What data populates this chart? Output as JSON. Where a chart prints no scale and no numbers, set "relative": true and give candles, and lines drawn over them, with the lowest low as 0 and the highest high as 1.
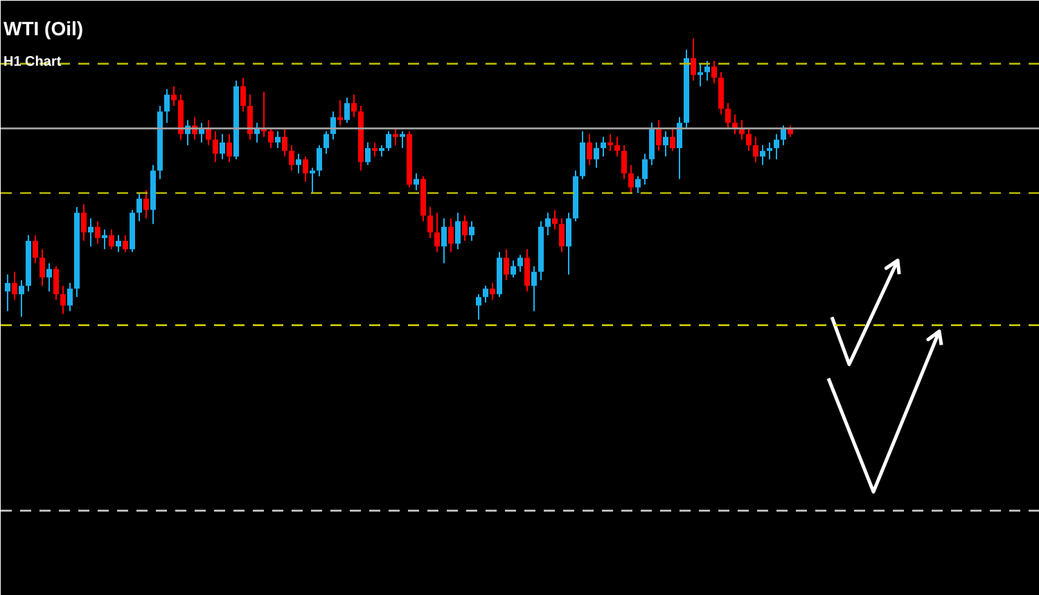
{
  "chart_data": {
    "type": "candlestick",
    "title": "WTI (Oil)",
    "subtitle": "H1 Chart",
    "relative": true,
    "grid": false,
    "categories": [
      null,
      null,
      null,
      null,
      null,
      null,
      null,
      null,
      null,
      null,
      null,
      null,
      null,
      null,
      null,
      null,
      null,
      null,
      null,
      null,
      null,
      null,
      null,
      null,
      null,
      null,
      null,
      null,
      null,
      null,
      null,
      null,
      null,
      null,
      null,
      null,
      null,
      null,
      null,
      null,
      null,
      null,
      null,
      null,
      null,
      null,
      null,
      null,
      null,
      null,
      null,
      null,
      null,
      null,
      null,
      null,
      null,
      null,
      null,
      null,
      null,
      null,
      null,
      null,
      null,
      null,
      null,
      null,
      null,
      null,
      null,
      null,
      null,
      null,
      null,
      null,
      null,
      null,
      null,
      null,
      null,
      null,
      null,
      null,
      null,
      null,
      null,
      null,
      null,
      null,
      null,
      null,
      null,
      null,
      null,
      null,
      null,
      null,
      null,
      null,
      null,
      null,
      null,
      null,
      null,
      null,
      null,
      null,
      null,
      null,
      null,
      null,
      null,
      null
    ],
    "ohlc": [
      [
        0.1,
        0.16,
        0.03,
        0.13
      ],
      [
        0.13,
        0.17,
        0.07,
        0.09
      ],
      [
        0.09,
        0.14,
        0.01,
        0.12
      ],
      [
        0.12,
        0.3,
        0.1,
        0.28
      ],
      [
        0.28,
        0.3,
        0.2,
        0.22
      ],
      [
        0.22,
        0.25,
        0.12,
        0.15
      ],
      [
        0.15,
        0.2,
        0.1,
        0.18
      ],
      [
        0.18,
        0.19,
        0.07,
        0.09
      ],
      [
        0.09,
        0.12,
        0.02,
        0.05
      ],
      [
        0.05,
        0.13,
        0.03,
        0.11
      ],
      [
        0.11,
        0.4,
        0.08,
        0.38
      ],
      [
        0.38,
        0.41,
        0.28,
        0.31
      ],
      [
        0.31,
        0.36,
        0.26,
        0.33
      ],
      [
        0.33,
        0.35,
        0.27,
        0.29
      ],
      [
        0.29,
        0.32,
        0.25,
        0.3
      ],
      [
        0.3,
        0.32,
        0.25,
        0.26
      ],
      [
        0.26,
        0.3,
        0.24,
        0.28
      ],
      [
        0.28,
        0.3,
        0.24,
        0.25
      ],
      [
        0.25,
        0.39,
        0.24,
        0.38
      ],
      [
        0.38,
        0.45,
        0.35,
        0.43
      ],
      [
        0.43,
        0.46,
        0.36,
        0.39
      ],
      [
        0.39,
        0.55,
        0.34,
        0.53
      ],
      [
        0.53,
        0.76,
        0.5,
        0.74
      ],
      [
        0.74,
        0.82,
        0.7,
        0.8
      ],
      [
        0.8,
        0.83,
        0.76,
        0.78
      ],
      [
        0.78,
        0.8,
        0.64,
        0.66
      ],
      [
        0.66,
        0.71,
        0.62,
        0.69
      ],
      [
        0.69,
        0.72,
        0.64,
        0.66
      ],
      [
        0.66,
        0.7,
        0.63,
        0.68
      ],
      [
        0.68,
        0.71,
        0.62,
        0.64
      ],
      [
        0.64,
        0.67,
        0.56,
        0.59
      ],
      [
        0.59,
        0.66,
        0.57,
        0.63
      ],
      [
        0.63,
        0.66,
        0.56,
        0.58
      ],
      [
        0.58,
        0.85,
        0.57,
        0.83
      ],
      [
        0.83,
        0.86,
        0.74,
        0.76
      ],
      [
        0.76,
        0.8,
        0.64,
        0.66
      ],
      [
        0.66,
        0.7,
        0.63,
        0.68
      ],
      [
        0.68,
        0.81,
        0.65,
        0.67
      ],
      [
        0.67,
        0.68,
        0.61,
        0.63
      ],
      [
        0.63,
        0.67,
        0.61,
        0.65
      ],
      [
        0.65,
        0.68,
        0.58,
        0.6
      ],
      [
        0.6,
        0.62,
        0.53,
        0.55
      ],
      [
        0.55,
        0.59,
        0.52,
        0.57
      ],
      [
        0.57,
        0.58,
        0.49,
        0.52
      ],
      [
        0.52,
        0.54,
        0.45,
        0.53
      ],
      [
        0.53,
        0.62,
        0.51,
        0.61
      ],
      [
        0.61,
        0.67,
        0.59,
        0.66
      ],
      [
        0.66,
        0.74,
        0.64,
        0.72
      ],
      [
        0.72,
        0.78,
        0.69,
        0.71
      ],
      [
        0.71,
        0.79,
        0.7,
        0.77
      ],
      [
        0.77,
        0.8,
        0.72,
        0.74
      ],
      [
        0.74,
        0.76,
        0.53,
        0.56
      ],
      [
        0.56,
        0.63,
        0.55,
        0.61
      ],
      [
        0.61,
        0.63,
        0.58,
        0.6
      ],
      [
        0.6,
        0.62,
        0.58,
        0.61
      ],
      [
        0.61,
        0.67,
        0.6,
        0.66
      ],
      [
        0.66,
        0.68,
        0.62,
        0.65
      ],
      [
        0.65,
        0.67,
        0.61,
        0.66
      ],
      [
        0.66,
        0.67,
        0.47,
        0.48
      ],
      [
        0.48,
        0.52,
        0.46,
        0.5
      ],
      [
        0.5,
        0.51,
        0.35,
        0.37
      ],
      [
        0.37,
        0.4,
        0.29,
        0.31
      ],
      [
        0.31,
        0.38,
        0.24,
        0.26
      ],
      [
        0.26,
        0.36,
        0.2,
        0.33
      ],
      [
        0.33,
        0.36,
        0.24,
        0.27
      ],
      [
        0.27,
        0.38,
        0.25,
        0.35
      ],
      [
        0.35,
        0.37,
        0.28,
        0.3
      ],
      [
        0.3,
        0.35,
        0.28,
        0.33
      ],
      [
        0.05,
        0.09,
        0.0,
        0.08
      ],
      [
        0.08,
        0.12,
        0.06,
        0.11
      ],
      [
        0.11,
        0.13,
        0.07,
        0.09
      ],
      [
        0.09,
        0.24,
        0.08,
        0.22
      ],
      [
        0.22,
        0.25,
        0.14,
        0.16
      ],
      [
        0.16,
        0.21,
        0.15,
        0.19
      ],
      [
        0.19,
        0.23,
        0.17,
        0.22
      ],
      [
        0.22,
        0.25,
        0.1,
        0.12
      ],
      [
        0.12,
        0.19,
        0.03,
        0.17
      ],
      [
        0.17,
        0.35,
        0.14,
        0.33
      ],
      [
        0.33,
        0.38,
        0.3,
        0.36
      ],
      [
        0.36,
        0.39,
        0.32,
        0.34
      ],
      [
        0.34,
        0.36,
        0.24,
        0.26
      ],
      [
        0.26,
        0.38,
        0.16,
        0.36
      ],
      [
        0.36,
        0.53,
        0.35,
        0.51
      ],
      [
        0.51,
        0.67,
        0.5,
        0.63
      ],
      [
        0.63,
        0.66,
        0.55,
        0.57
      ],
      [
        0.57,
        0.63,
        0.54,
        0.61
      ],
      [
        0.61,
        0.65,
        0.58,
        0.63
      ],
      [
        0.63,
        0.66,
        0.6,
        0.62
      ],
      [
        0.62,
        0.65,
        0.58,
        0.6
      ],
      [
        0.6,
        0.62,
        0.5,
        0.52
      ],
      [
        0.52,
        0.55,
        0.45,
        0.47
      ],
      [
        0.47,
        0.51,
        0.45,
        0.5
      ],
      [
        0.5,
        0.59,
        0.48,
        0.57
      ],
      [
        0.57,
        0.7,
        0.55,
        0.68
      ],
      [
        0.68,
        0.71,
        0.6,
        0.62
      ],
      [
        0.62,
        0.67,
        0.58,
        0.65
      ],
      [
        0.65,
        0.68,
        0.6,
        0.61
      ],
      [
        0.61,
        0.72,
        0.5,
        0.7
      ],
      [
        0.7,
        0.96,
        0.68,
        0.93
      ],
      [
        0.93,
        1.0,
        0.85,
        0.87
      ],
      [
        0.87,
        0.91,
        0.83,
        0.88
      ],
      [
        0.88,
        0.92,
        0.85,
        0.9
      ],
      [
        0.9,
        0.92,
        0.84,
        0.86
      ],
      [
        0.86,
        0.88,
        0.73,
        0.75
      ],
      [
        0.75,
        0.77,
        0.68,
        0.7
      ],
      [
        0.7,
        0.73,
        0.66,
        0.68
      ],
      [
        0.68,
        0.71,
        0.64,
        0.66
      ],
      [
        0.66,
        0.68,
        0.6,
        0.62
      ],
      [
        0.62,
        0.65,
        0.56,
        0.58
      ],
      [
        0.58,
        0.62,
        0.55,
        0.6
      ],
      [
        0.6,
        0.63,
        0.57,
        0.61
      ],
      [
        0.61,
        0.66,
        0.57,
        0.64
      ],
      [
        0.64,
        0.69,
        0.62,
        0.68
      ],
      [
        0.68,
        0.69,
        0.65,
        0.66
      ]
    ],
    "colors": [
      "#1cb0f0",
      "#ff0000",
      "#1cb0f0",
      "#1cb0f0",
      "#ff0000",
      "#ff0000",
      "#1cb0f0",
      "#ff0000",
      "#ff0000",
      "#1cb0f0",
      "#1cb0f0",
      "#ff0000",
      "#1cb0f0",
      "#ff0000",
      "#1cb0f0",
      "#ff0000",
      "#1cb0f0",
      "#ff0000",
      "#1cb0f0",
      "#1cb0f0",
      "#ff0000",
      "#1cb0f0",
      "#1cb0f0",
      "#1cb0f0",
      "#ff0000",
      "#ff0000",
      "#1cb0f0",
      "#ff0000",
      "#1cb0f0",
      "#ff0000",
      "#ff0000",
      "#1cb0f0",
      "#ff0000",
      "#1cb0f0",
      "#ff0000",
      "#ff0000",
      "#1cb0f0",
      "#ff0000",
      "#ff0000",
      "#1cb0f0",
      "#ff0000",
      "#ff0000",
      "#1cb0f0",
      "#ff0000",
      "#1cb0f0",
      "#1cb0f0",
      "#1cb0f0",
      "#1cb0f0",
      "#ff0000",
      "#1cb0f0",
      "#ff0000",
      "#ff0000",
      "#1cb0f0",
      "#ff0000",
      "#1cb0f0",
      "#1cb0f0",
      "#ff0000",
      "#1cb0f0",
      "#ff0000",
      "#1cb0f0",
      "#ff0000",
      "#ff0000",
      "#ff0000",
      "#1cb0f0",
      "#ff0000",
      "#1cb0f0",
      "#ff0000",
      "#1cb0f0",
      "#1cb0f0",
      "#1cb0f0",
      "#ff0000",
      "#1cb0f0",
      "#ff0000",
      "#1cb0f0",
      "#1cb0f0",
      "#ff0000",
      "#1cb0f0",
      "#1cb0f0",
      "#1cb0f0",
      "#ff0000",
      "#ff0000",
      "#1cb0f0",
      "#1cb0f0",
      "#1cb0f0",
      "#ff0000",
      "#1cb0f0",
      "#1cb0f0",
      "#ff0000",
      "#ff0000",
      "#ff0000",
      "#ff0000",
      "#1cb0f0",
      "#1cb0f0",
      "#1cb0f0",
      "#ff0000",
      "#1cb0f0",
      "#ff0000",
      "#1cb0f0",
      "#1cb0f0",
      "#ff0000",
      "#1cb0f0",
      "#1cb0f0",
      "#ff0000",
      "#ff0000",
      "#ff0000",
      "#ff0000",
      "#ff0000",
      "#ff0000",
      "#ff0000",
      "#1cb0f0",
      "#1cb0f0",
      "#1cb0f0",
      "#1cb0f0",
      "#ff0000"
    ],
    "ref_lines": [
      {
        "axis": "y",
        "value": 0.91,
        "color": "#b8b800",
        "line_style": "dashed"
      },
      {
        "axis": "y",
        "value": 0.68,
        "color": "#a0a0a0",
        "line_style": "solid"
      },
      {
        "axis": "y",
        "value": 0.45,
        "color": "#b8b800",
        "line_style": "dashed"
      },
      {
        "axis": "y",
        "value": -0.02,
        "color": "#d8d800",
        "line_style": "dashed"
      },
      {
        "axis": "y",
        "value": -0.68,
        "color": "#c8c8c8",
        "line_style": "dashed"
      }
    ]
  }
}
